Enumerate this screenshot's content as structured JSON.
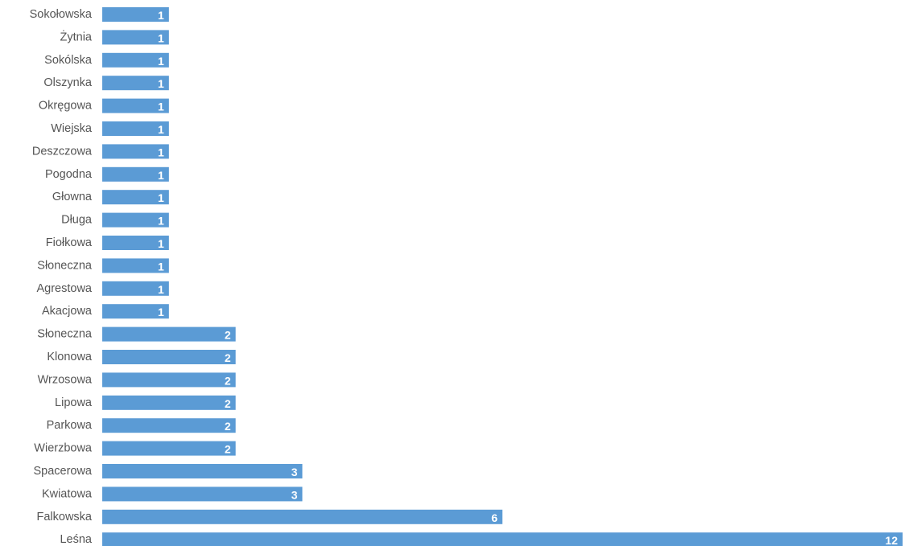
{
  "chart_data": {
    "type": "bar",
    "orientation": "horizontal",
    "categories": [
      "Sokołowska",
      "Żytnia",
      "Sokólska",
      "Olszynka",
      "Okręgowa",
      "Wiejska",
      "Deszczowa",
      "Pogodna",
      "Głowna",
      "Długa",
      "Fiołkowa",
      "Słoneczna",
      "Agrestowa",
      "Akacjowa",
      "Słoneczna",
      "Klonowa",
      "Wrzosowa",
      "Lipowa",
      "Parkowa",
      "Wierzbowa",
      "Spacerowa",
      "Kwiatowa",
      "Falkowska",
      "Leśna"
    ],
    "values": [
      1,
      1,
      1,
      1,
      1,
      1,
      1,
      1,
      1,
      1,
      1,
      1,
      1,
      1,
      2,
      2,
      2,
      2,
      2,
      2,
      3,
      3,
      6,
      12
    ],
    "xlim": [
      0,
      12
    ],
    "data_labels": true,
    "grid": false,
    "legend": "none",
    "bar_color": "#5b9bd5",
    "label_color": "#ffffff"
  }
}
